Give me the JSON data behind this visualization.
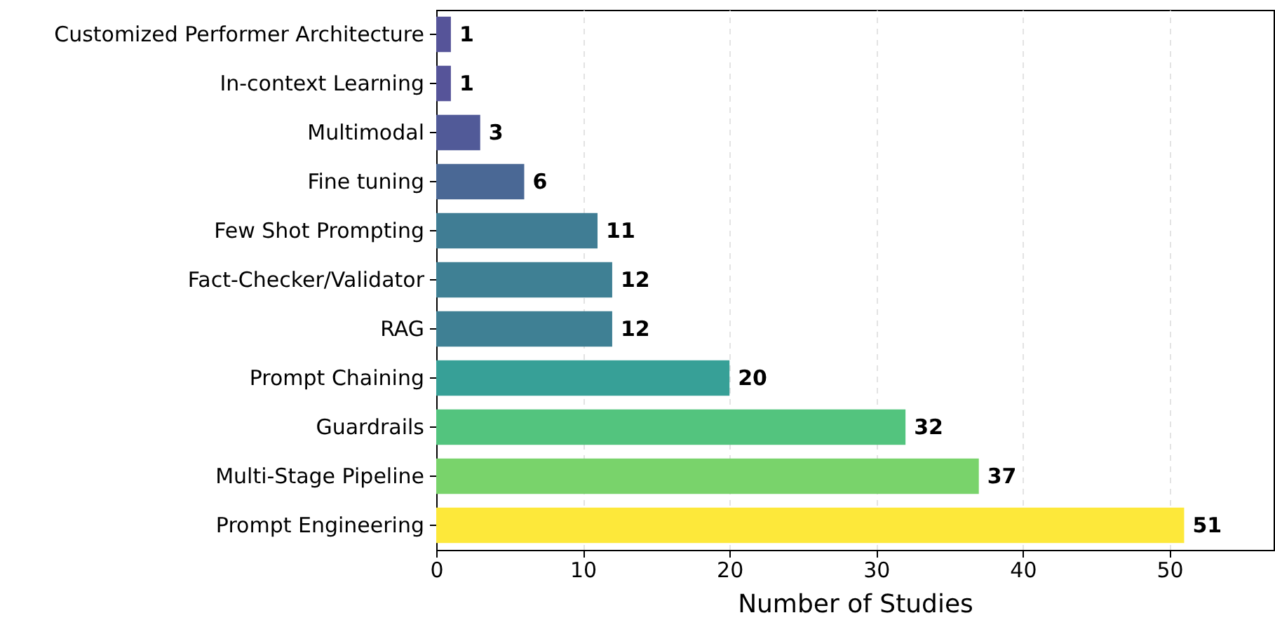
{
  "chart_data": {
    "type": "bar",
    "orientation": "horizontal",
    "xlabel": "Number of Studies",
    "categories": [
      "Customized Performer Architecture",
      "In-context Learning",
      "Multimodal",
      "Fine tuning",
      "Few Shot Prompting",
      "Fact-Checker/Validator",
      "RAG",
      "Prompt Chaining",
      "Guardrails",
      "Multi-Stage Pipeline",
      "Prompt Engineering"
    ],
    "values": [
      1,
      1,
      3,
      6,
      11,
      12,
      12,
      20,
      32,
      37,
      51
    ],
    "colors": [
      "#565499",
      "#565499",
      "#515a98",
      "#4a6895",
      "#407d94",
      "#3f8094",
      "#3f8094",
      "#37a097",
      "#53c47e",
      "#79d36b",
      "#fde83a"
    ],
    "xlim": [
      0,
      57.1
    ],
    "xticks": [
      0,
      10,
      20,
      30,
      40,
      50
    ],
    "grid": "x",
    "data_labels": true
  }
}
